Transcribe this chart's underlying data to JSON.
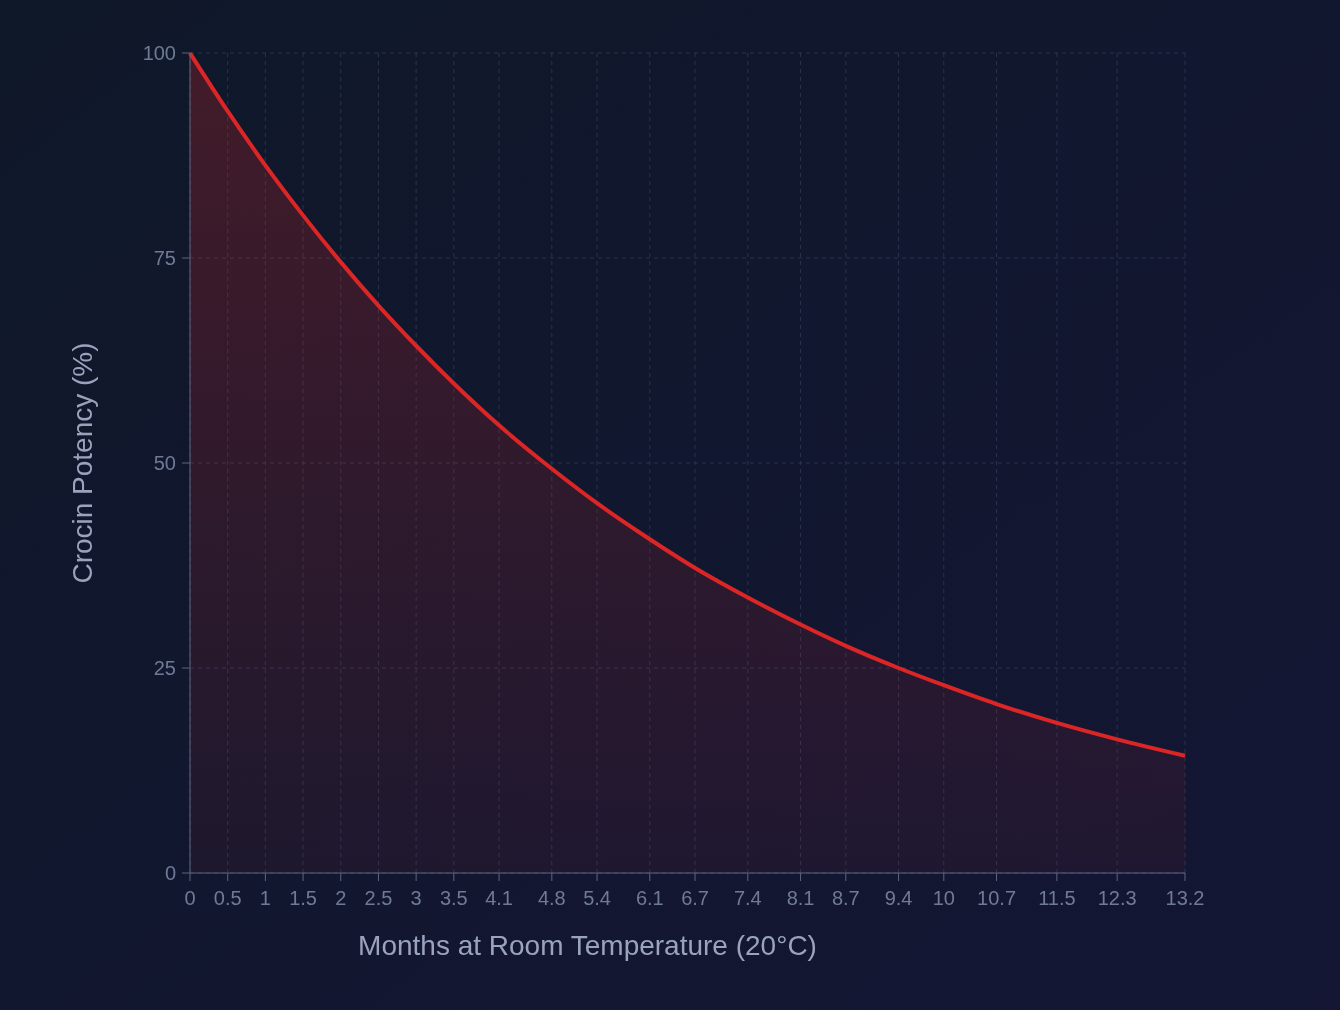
{
  "chart_data": {
    "type": "area",
    "xlabel": "Months at Room Temperature (20°C)",
    "ylabel": "Crocin Potency (%)",
    "x": [
      0,
      0.5,
      1,
      1.5,
      2,
      2.5,
      3,
      3.5,
      4.1,
      4.8,
      5.4,
      6.1,
      6.7,
      7.4,
      8.1,
      8.7,
      9.4,
      10,
      10.7,
      11.5,
      12.3,
      13.2
    ],
    "series": [
      {
        "color": "#dc2626",
        "values": [
          100,
          92.9,
          86.3,
          80.2,
          74.5,
          69.2,
          64.3,
          59.7,
          54.6,
          49.3,
          45.1,
          40.7,
          37.2,
          33.6,
          30.3,
          27.7,
          25.0,
          22.9,
          20.6,
          18.3,
          16.3,
          14.3
        ]
      }
    ],
    "xlim": [
      0,
      13.2
    ],
    "xticks": [
      0,
      0.5,
      1,
      1.5,
      2,
      2.5,
      3,
      3.5,
      4.1,
      4.8,
      5.4,
      6.1,
      6.7,
      7.4,
      8.1,
      8.7,
      9.4,
      10,
      10.7,
      11.5,
      12.3,
      13.2
    ],
    "ylim": [
      0,
      100
    ],
    "yticks": [
      0,
      25,
      50,
      75,
      100
    ],
    "grid": true,
    "marker": "none",
    "line_style": "solid"
  }
}
